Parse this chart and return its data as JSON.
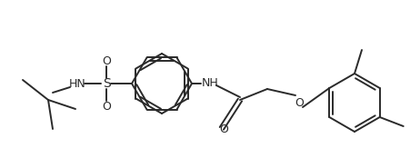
{
  "bg_color": "#ffffff",
  "line_color": "#2a2a2a",
  "lw": 1.4,
  "figsize": [
    4.62,
    1.85
  ],
  "dpi": 100,
  "xlim": [
    0,
    462
  ],
  "ylim": [
    0,
    185
  ]
}
